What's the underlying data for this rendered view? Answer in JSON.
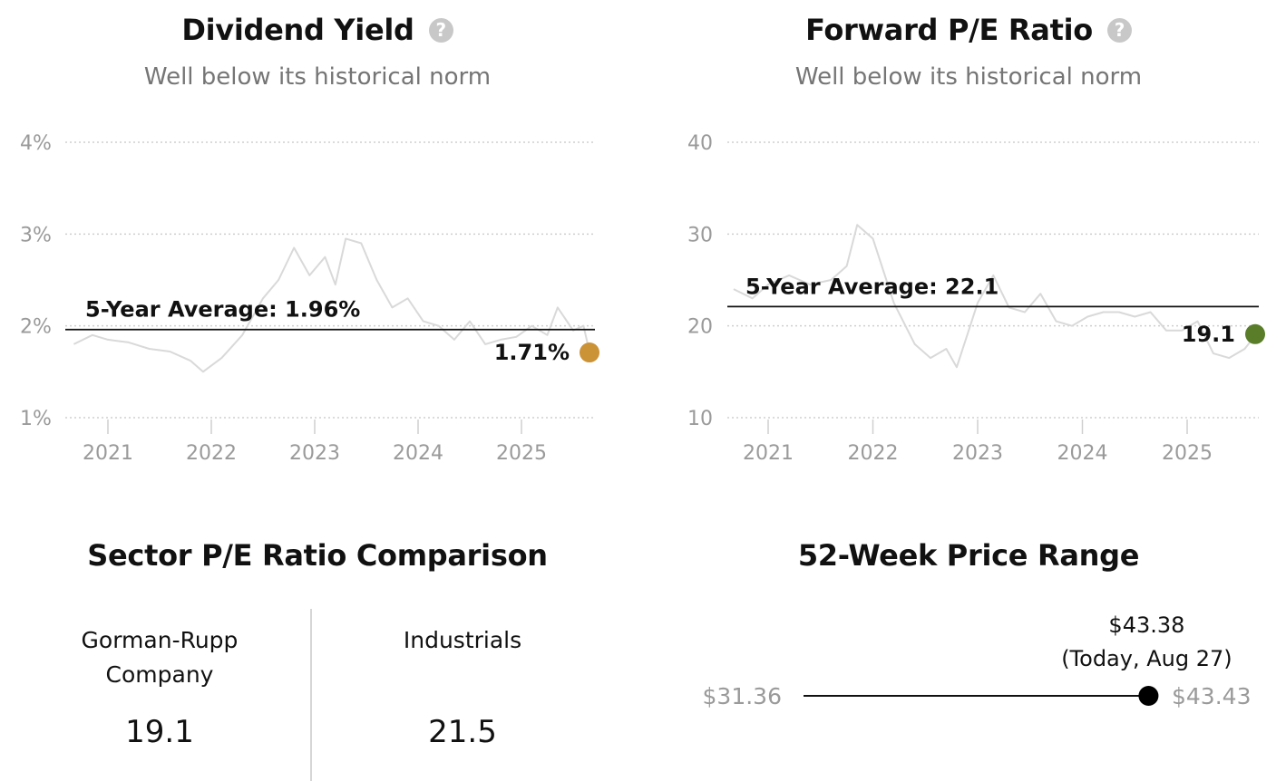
{
  "dividend": {
    "title": "Dividend Yield",
    "help_icon": "question-circle-icon",
    "subtitle": "Well below its historical norm",
    "chart_data": {
      "type": "line",
      "title": "Dividend Yield",
      "y_unit": "%",
      "ylim": [
        1,
        4
      ],
      "y_ticks": [
        1,
        2,
        3,
        4
      ],
      "y_tick_labels": [
        "1%",
        "2%",
        "3%",
        "4%"
      ],
      "x_ticks": [
        2021,
        2022,
        2023,
        2024,
        2025
      ],
      "x_tick_labels": [
        "2021",
        "2022",
        "2023",
        "2024",
        "2025"
      ],
      "grid": true,
      "series": [
        {
          "color": "#d9d9d9",
          "x": [
            2020.67,
            2020.85,
            2021.0,
            2021.2,
            2021.4,
            2021.6,
            2021.8,
            2021.92,
            2022.1,
            2022.3,
            2022.5,
            2022.65,
            2022.8,
            2022.95,
            2023.1,
            2023.2,
            2023.3,
            2023.45,
            2023.6,
            2023.75,
            2023.9,
            2024.05,
            2024.2,
            2024.35,
            2024.5,
            2024.65,
            2024.8,
            2024.95,
            2025.1,
            2025.25,
            2025.35,
            2025.5,
            2025.6,
            2025.66
          ],
          "y": [
            1.8,
            1.9,
            1.85,
            1.82,
            1.75,
            1.72,
            1.62,
            1.5,
            1.65,
            1.9,
            2.3,
            2.5,
            2.85,
            2.55,
            2.75,
            2.45,
            2.95,
            2.9,
            2.5,
            2.2,
            2.3,
            2.05,
            2.0,
            1.85,
            2.05,
            1.8,
            1.85,
            1.88,
            2.0,
            1.9,
            2.2,
            1.95,
            2.0,
            1.71
          ]
        }
      ],
      "average": {
        "value": 1.96,
        "label": "5-Year Average: 1.96%"
      },
      "current": {
        "value": 1.71,
        "label": "1.71%",
        "color": "#cc9236"
      }
    }
  },
  "forward_pe": {
    "title": "Forward P/E Ratio",
    "help_icon": "question-circle-icon",
    "subtitle": "Well below its historical norm",
    "chart_data": {
      "type": "line",
      "title": "Forward P/E Ratio",
      "ylim": [
        10,
        40
      ],
      "y_ticks": [
        10,
        20,
        30,
        40
      ],
      "y_tick_labels": [
        "10",
        "20",
        "30",
        "40"
      ],
      "x_ticks": [
        2021,
        2022,
        2023,
        2024,
        2025
      ],
      "x_tick_labels": [
        "2021",
        "2022",
        "2023",
        "2024",
        "2025"
      ],
      "grid": true,
      "series": [
        {
          "color": "#d9d9d9",
          "x": [
            2020.67,
            2020.85,
            2021.0,
            2021.2,
            2021.4,
            2021.6,
            2021.75,
            2021.85,
            2022.0,
            2022.2,
            2022.4,
            2022.55,
            2022.7,
            2022.8,
            2022.9,
            2023.0,
            2023.15,
            2023.3,
            2023.45,
            2023.6,
            2023.75,
            2023.9,
            2024.05,
            2024.2,
            2024.35,
            2024.5,
            2024.65,
            2024.8,
            2024.95,
            2025.1,
            2025.25,
            2025.4,
            2025.55,
            2025.66
          ],
          "y": [
            24.0,
            23.0,
            24.5,
            25.5,
            24.5,
            25.0,
            26.5,
            31.0,
            29.5,
            22.5,
            18.0,
            16.5,
            17.5,
            15.5,
            19.0,
            22.5,
            25.5,
            22.0,
            21.5,
            23.5,
            20.5,
            20.0,
            21.0,
            21.5,
            21.5,
            21.0,
            21.5,
            19.5,
            19.5,
            20.5,
            17.0,
            16.5,
            17.5,
            19.1
          ]
        }
      ],
      "average": {
        "value": 22.1,
        "label": "5-Year Average: 22.1"
      },
      "current": {
        "value": 19.1,
        "label": "19.1",
        "color": "#5a7d2a"
      }
    }
  },
  "sector": {
    "title": "Sector P/E Ratio Comparison",
    "company_name": "Gorman-Rupp Company",
    "company_value": "19.1",
    "sector_name": "Industrials",
    "sector_value": "21.5"
  },
  "price_range": {
    "title": "52-Week Price Range",
    "low": 31.36,
    "low_label": "$31.36",
    "high": 43.43,
    "high_label": "$43.43",
    "current": 43.38,
    "current_label": "$43.38",
    "current_note": "(Today, Aug 27)"
  }
}
